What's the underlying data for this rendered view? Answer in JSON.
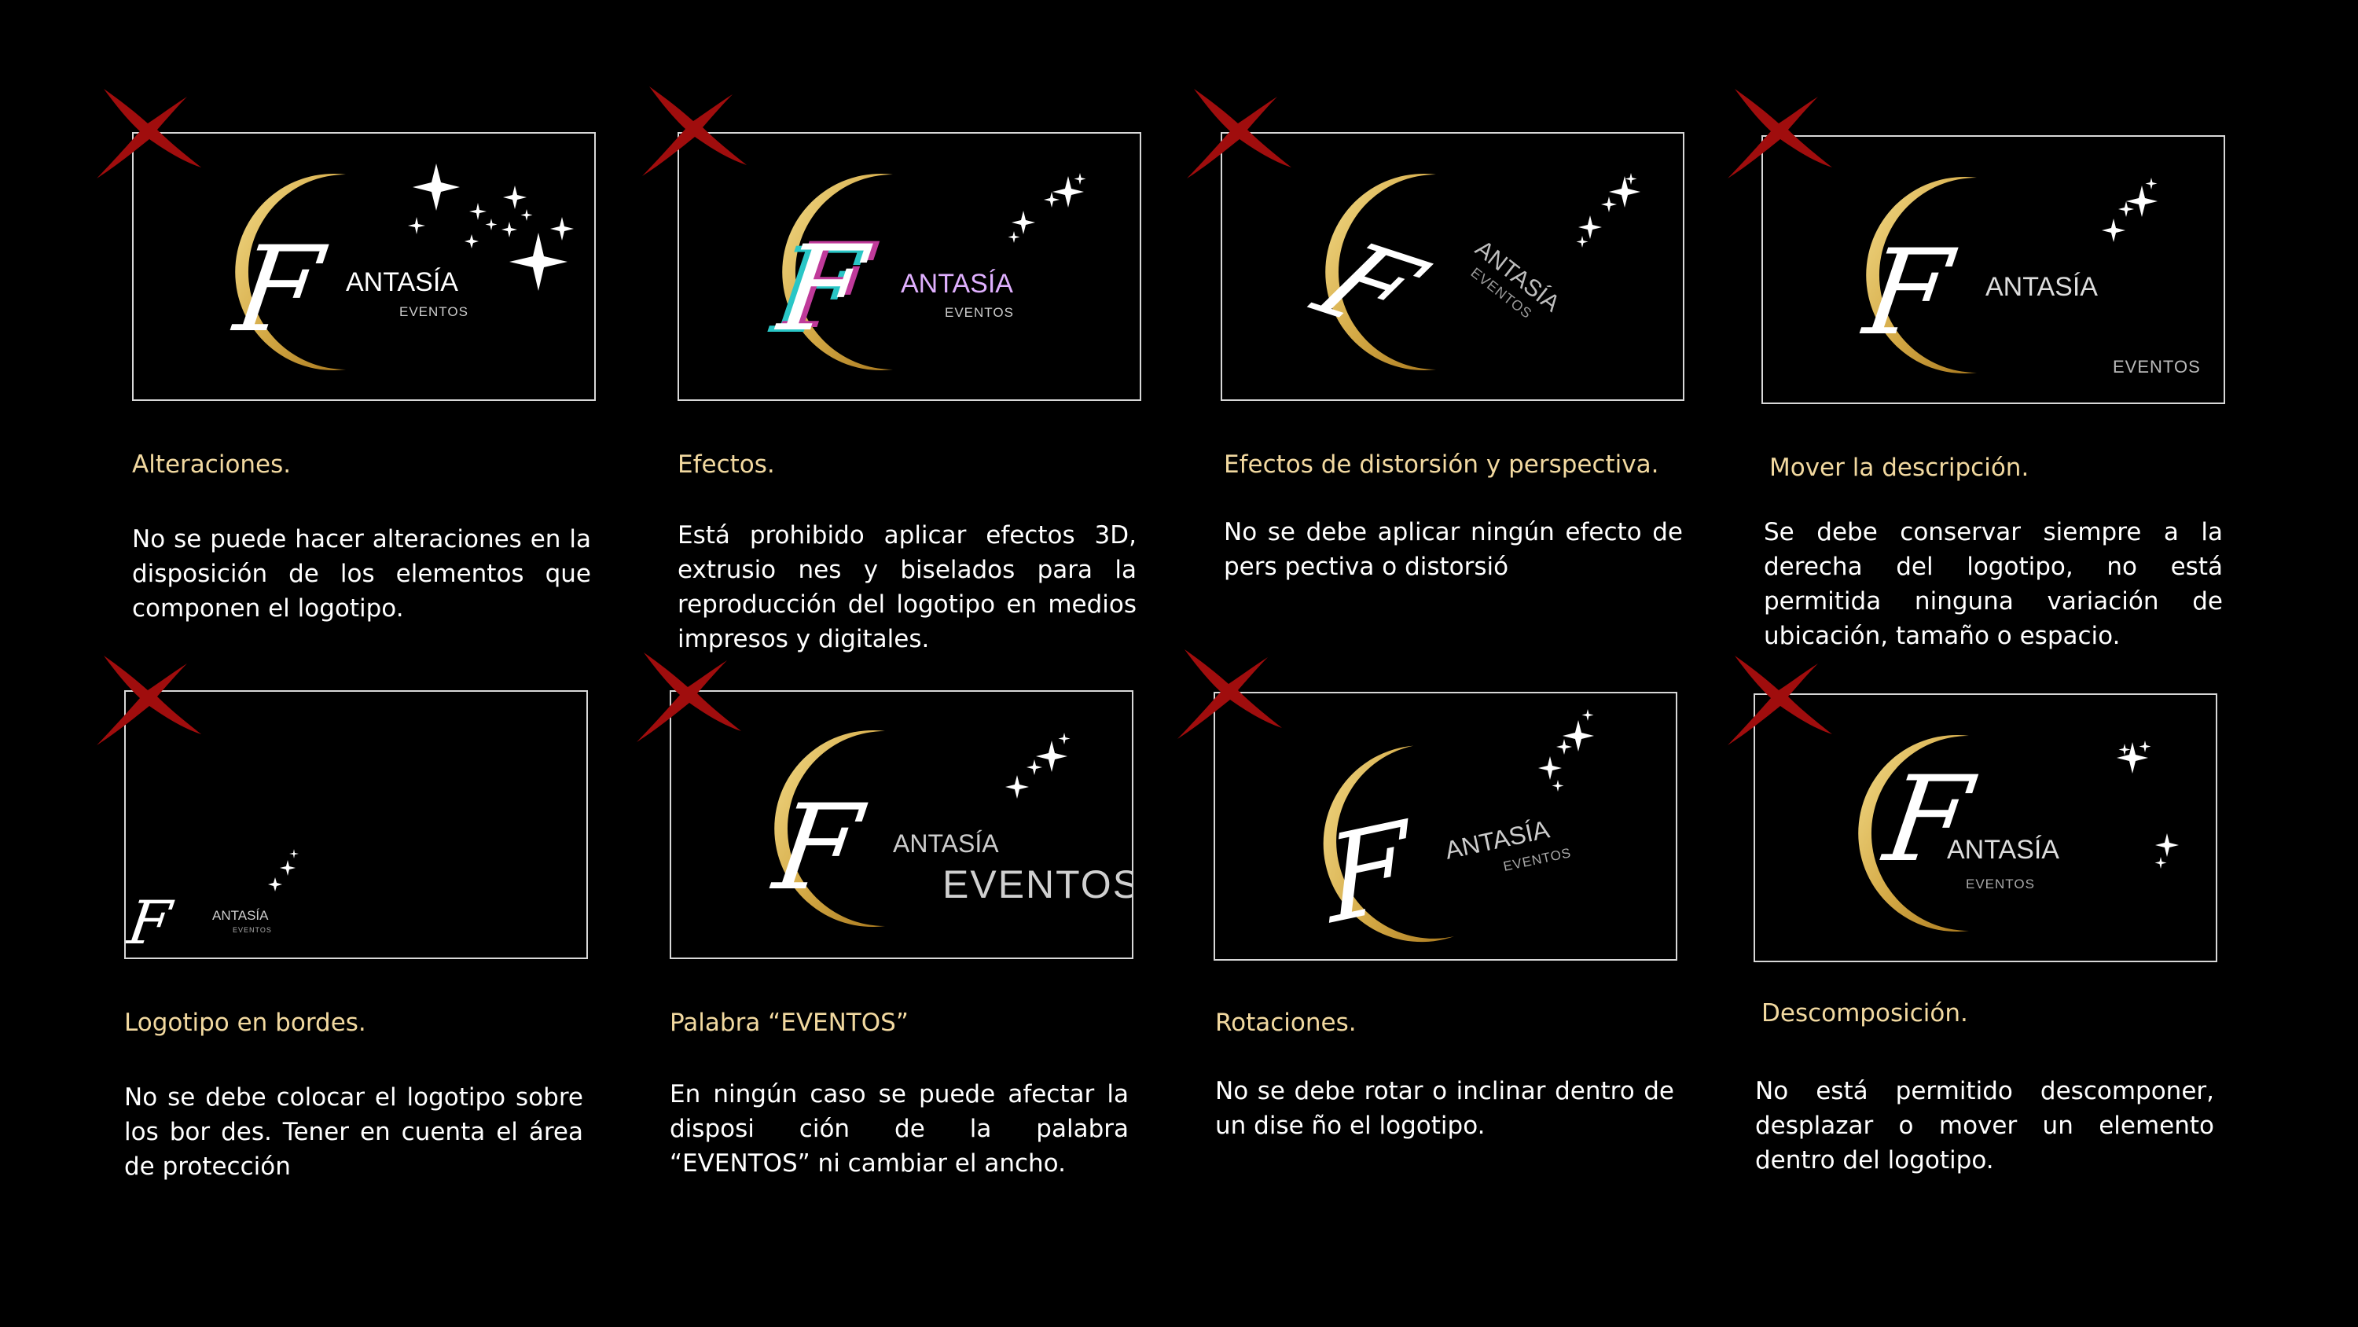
{
  "colors": {
    "background": "#000000",
    "heading": "#f2d9a0",
    "body_text": "#ffffff",
    "cross": "#a00d0d",
    "moon_light": "#f3dc8a",
    "moon_dark": "#a8781e"
  },
  "logo": {
    "name": "ANTASÍA",
    "initial": "F",
    "descriptor": "EVENTOS"
  },
  "panels": [
    {
      "heading": "Alteraciones.",
      "body": "No se puede hacer alteraciones en la disposición de los elementos que componen el logotipo."
    },
    {
      "heading": "Efectos.",
      "body": "Está prohibido aplicar efectos 3D, extrusio nes y biselados para la reproducción del logotipo en medios impresos y digitales."
    },
    {
      "heading": "Efectos de distorsión y perspectiva.",
      "body": "No se debe aplicar ningún efecto de pers  pectiva o distorsió"
    },
    {
      "heading": "Mover la descripción.",
      "body": "Se debe conservar siempre a la derecha del logotipo, no está permitida ninguna variación de ubicación, tamaño o espacio."
    },
    {
      "heading": "Logotipo en bordes.",
      "body": "No se debe colocar el logotipo sobre los bor  des. Tener en cuenta el área de protección"
    },
    {
      "heading": "Palabra “EVENTOS”",
      "body": "En ningún caso se puede afectar la disposi  ción de la palabra “EVENTOS” ni cambiar el ancho."
    },
    {
      "heading": "Rotaciones.",
      "body": "No se debe rotar o inclinar dentro de un dise   ño el logotipo."
    },
    {
      "heading": "Descomposición.",
      "body": "No está permitido descomponer, desplazar o mover un elemento dentro del logotipo."
    }
  ]
}
